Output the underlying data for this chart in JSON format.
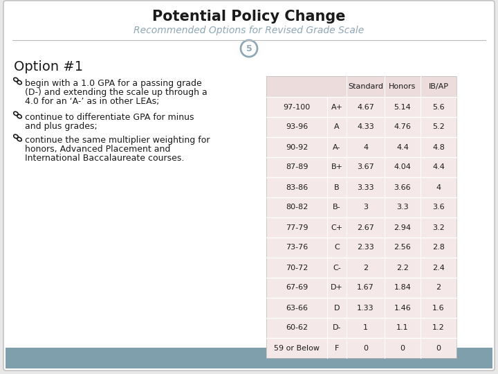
{
  "title": "Potential Policy Change",
  "subtitle": "Recommended Options for Revised Grade Scale",
  "slide_number": "5",
  "option_title": "Option #1",
  "bullet1_line1": "begin with a 1.0 GPA for a passing grade",
  "bullet1_line2": "(D-) and extending the scale up through a",
  "bullet1_line3": "4.0 for an ‘A-’ as in other LEAs;",
  "bullet2_line1": "continue to differentiate GPA for minus",
  "bullet2_line2": "and plus grades;",
  "bullet3_line1": "continue the same multiplier weighting for",
  "bullet3_line2": "honors, Advanced Placement and",
  "bullet3_line3": "International Baccalaureate courses.",
  "table_col1_header": "",
  "table_col2_header": "",
  "table_col3_header": "Standard",
  "table_col4_header": "Honors",
  "table_col5_header": "IB/AP",
  "table_rows": [
    [
      "97-100",
      "A+",
      "4.67",
      "5.14",
      "5.6"
    ],
    [
      "93-96",
      "A",
      "4.33",
      "4.76",
      "5.2"
    ],
    [
      "90-92",
      "A-",
      "4",
      "4.4",
      "4.8"
    ],
    [
      "87-89",
      "B+",
      "3.67",
      "4.04",
      "4.4"
    ],
    [
      "83-86",
      "B",
      "3.33",
      "3.66",
      "4"
    ],
    [
      "80-82",
      "B-",
      "3",
      "3.3",
      "3.6"
    ],
    [
      "77-79",
      "C+",
      "2.67",
      "2.94",
      "3.2"
    ],
    [
      "73-76",
      "C",
      "2.33",
      "2.56",
      "2.8"
    ],
    [
      "70-72",
      "C-",
      "2",
      "2.2",
      "2.4"
    ],
    [
      "67-69",
      "D+",
      "1.67",
      "1.84",
      "2"
    ],
    [
      "63-66",
      "D",
      "1.33",
      "1.46",
      "1.6"
    ],
    [
      "60-62",
      "D-",
      "1",
      "1.1",
      "1.2"
    ],
    [
      "59 or Below",
      "F",
      "0",
      "0",
      "0"
    ]
  ],
  "bg_color": "#ffffff",
  "outer_bg": "#e8e8e8",
  "footer_color": "#7f9fad",
  "table_header_bg": "#ecdcdc",
  "table_row_bg": "#f5e8e8",
  "title_color": "#1a1a1a",
  "subtitle_color": "#8fa8b5",
  "text_color": "#1a1a1a",
  "number_circle_color": "#8fa8b5",
  "border_color": "#bbbbbb",
  "white": "#ffffff"
}
